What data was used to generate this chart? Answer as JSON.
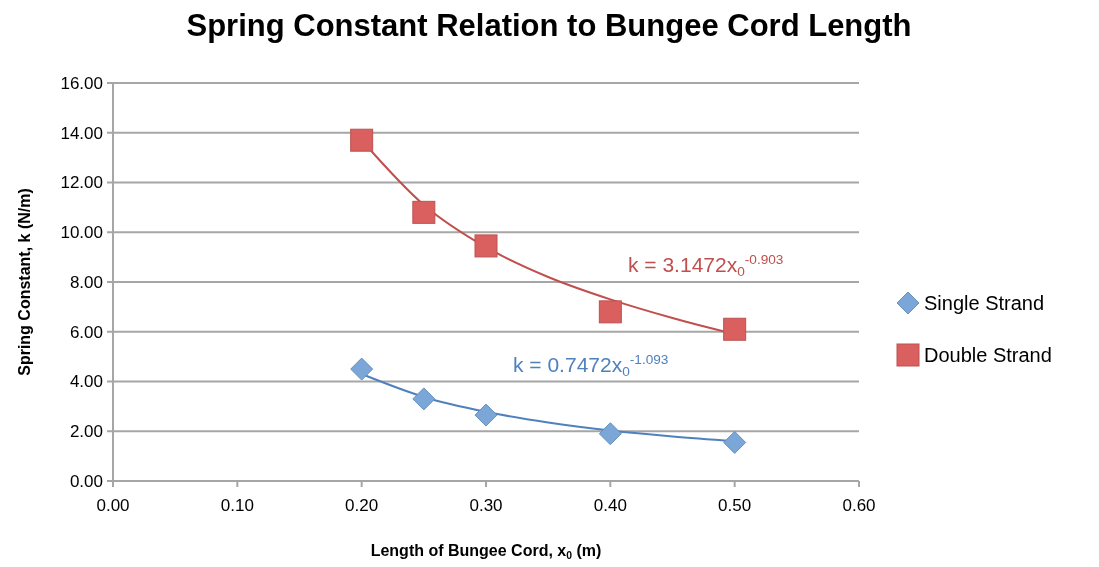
{
  "chart_data": {
    "type": "scatter",
    "title": "Spring Constant Relation to Bungee Cord Length",
    "xlabel": "Length of Bungee Cord, x$_{0}$ (m)",
    "ylabel": "Spring Constant, k (N/m)",
    "x": [
      0.2,
      0.25,
      0.3,
      0.4,
      0.5
    ],
    "series": [
      {
        "name": "Single Strand",
        "color": "#7aa6d8",
        "marker": "diamond",
        "values": [
          4.5,
          3.3,
          2.65,
          1.9,
          1.55
        ]
      },
      {
        "name": "Double Strand",
        "color": "#d9605f",
        "marker": "square",
        "values": [
          13.7,
          10.8,
          9.45,
          6.8,
          6.1
        ]
      },
      {
        "type": "line",
        "color": "#4f81bd",
        "x": [
          0.2,
          0.25,
          0.3,
          0.35,
          0.4,
          0.45,
          0.5
        ],
        "values": [
          4.3,
          3.38,
          2.78,
          2.35,
          2.03,
          1.79,
          1.6
        ]
      },
      {
        "type": "line",
        "color": "#c0504d",
        "x": [
          0.2,
          0.25,
          0.3,
          0.35,
          0.4,
          0.45,
          0.5
        ],
        "values": [
          13.7,
          11.1,
          9.4,
          8.2,
          7.3,
          6.55,
          5.9
        ]
      }
    ],
    "annotations": [
      "k = 0.7472x$_{0}$$^{-1.093}$",
      "k = 3.1472x$_{0}$$^{-0.903}$"
    ],
    "xlim": [
      0,
      0.6
    ],
    "ylim": [
      0,
      16
    ],
    "xticks": [
      {
        "value": 0,
        "label": "0.00"
      },
      {
        "value": 0.1,
        "label": "0.10"
      },
      {
        "value": 0.2,
        "label": "0.20"
      },
      {
        "value": 0.3,
        "label": "0.30"
      },
      {
        "value": 0.4,
        "label": "0.40"
      },
      {
        "value": 0.5,
        "label": "0.50"
      },
      {
        "value": 0.6,
        "label": "0.60"
      }
    ],
    "yticks": [
      {
        "value": 0,
        "label": "0.00"
      },
      {
        "value": 2,
        "label": "2.00"
      },
      {
        "value": 4,
        "label": "4.00"
      },
      {
        "value": 6,
        "label": "6.00"
      },
      {
        "value": 8,
        "label": "8.00"
      },
      {
        "value": 10,
        "label": "10.00"
      },
      {
        "value": 12,
        "label": "12.00"
      },
      {
        "value": 14,
        "label": "14.00"
      },
      {
        "value": 16,
        "label": "16.00"
      }
    ],
    "grid": "y",
    "legend": "right"
  }
}
